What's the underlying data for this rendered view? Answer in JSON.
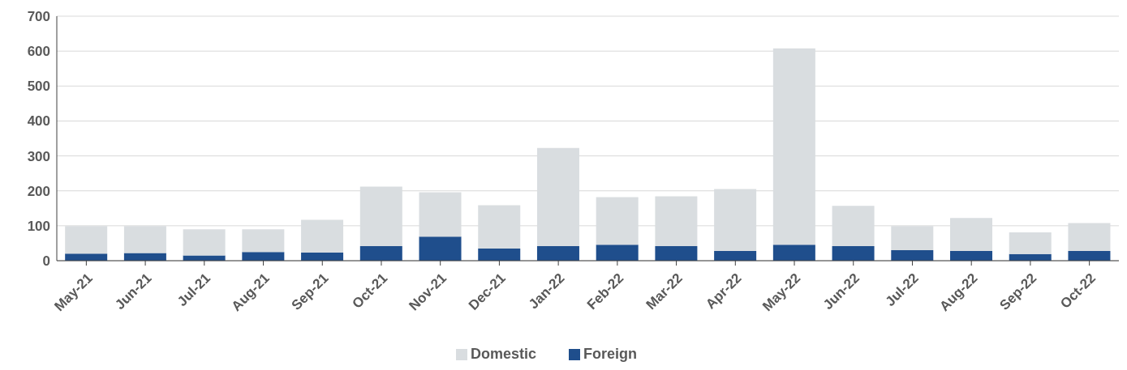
{
  "chart_data": {
    "type": "bar",
    "stacked": true,
    "categories": [
      "May-21",
      "Jun-21",
      "Jul-21",
      "Aug-21",
      "Sep-21",
      "Oct-21",
      "Nov-21",
      "Dec-21",
      "Jan-22",
      "Feb-22",
      "Mar-22",
      "Apr-22",
      "May-22",
      "Jun-22",
      "Jul-22",
      "Aug-22",
      "Sep-22",
      "Oct-22"
    ],
    "series": [
      {
        "name": "Foreign",
        "color": "#1f4e8c",
        "values": [
          20,
          22,
          15,
          25,
          23,
          42,
          69,
          35,
          42,
          46,
          42,
          28,
          46,
          42,
          30,
          28,
          19,
          28
        ]
      },
      {
        "name": "Domestic",
        "color": "#d9dde0",
        "values": [
          79,
          77,
          75,
          65,
          94,
          170,
          127,
          124,
          281,
          136,
          142,
          177,
          562,
          115,
          69,
          94,
          62,
          80
        ]
      }
    ],
    "ylim": [
      0,
      700
    ],
    "yticks": [
      0,
      100,
      200,
      300,
      400,
      500,
      600,
      700
    ],
    "grid": "y",
    "legend": "bottom"
  }
}
